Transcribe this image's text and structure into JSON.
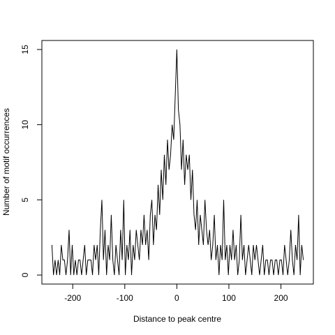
{
  "chart_data": {
    "type": "line",
    "x_label": "Distance to peak centre",
    "y_label": "Number of motif occurrences",
    "color": "#000000",
    "xlim": [
      -259.3,
      262.3
    ],
    "ylim": [
      -0.6,
      15.6
    ],
    "xticks": [
      -200,
      -100,
      0,
      100,
      200
    ],
    "yticks": [
      0,
      5,
      10,
      15
    ],
    "grid": false,
    "x": [
      -240,
      -237,
      -234,
      -231,
      -228,
      -225,
      -222,
      -219,
      -216,
      -213,
      -210,
      -207,
      -204,
      -201,
      -198,
      -195,
      -192,
      -189,
      -186,
      -183,
      -180,
      -177,
      -174,
      -171,
      -168,
      -165,
      -162,
      -159,
      -156,
      -153,
      -150,
      -147,
      -144,
      -141,
      -138,
      -135,
      -132,
      -129,
      -126,
      -123,
      -120,
      -117,
      -114,
      -111,
      -108,
      -105,
      -102,
      -99,
      -96,
      -93,
      -90,
      -87,
      -84,
      -81,
      -78,
      -75,
      -72,
      -69,
      -66,
      -63,
      -60,
      -57,
      -54,
      -51,
      -48,
      -45,
      -42,
      -39,
      -36,
      -33,
      -30,
      -27,
      -24,
      -21,
      -18,
      -15,
      -12,
      -9,
      -6,
      -3,
      0,
      3,
      6,
      9,
      12,
      15,
      18,
      21,
      24,
      27,
      30,
      33,
      36,
      39,
      42,
      45,
      48,
      51,
      54,
      57,
      60,
      63,
      66,
      69,
      72,
      75,
      78,
      81,
      84,
      87,
      90,
      93,
      96,
      99,
      102,
      105,
      108,
      111,
      114,
      117,
      120,
      123,
      126,
      129,
      132,
      135,
      138,
      141,
      144,
      147,
      150,
      153,
      156,
      159,
      162,
      165,
      168,
      171,
      174,
      177,
      180,
      183,
      186,
      189,
      192,
      195,
      198,
      201,
      204,
      207,
      210,
      213,
      216,
      219,
      222,
      225,
      228,
      231,
      234,
      237,
      240,
      243
    ],
    "values": [
      2,
      0,
      1,
      0,
      1,
      0,
      2,
      1,
      1,
      0,
      1,
      3,
      0,
      2,
      0,
      1,
      0,
      1,
      1,
      0,
      1,
      2,
      0,
      1,
      1,
      1,
      0,
      2,
      1,
      2,
      0,
      3,
      5,
      1,
      3,
      0,
      2,
      1,
      4,
      1,
      0,
      2,
      1,
      0,
      3,
      1,
      5,
      0,
      2,
      1,
      3,
      0,
      2,
      1,
      3,
      2,
      1,
      3,
      2,
      4,
      2,
      3,
      1,
      4,
      5,
      2,
      4,
      3,
      6,
      4,
      7,
      5,
      8,
      6,
      9,
      7,
      8,
      10,
      9,
      12,
      15,
      11,
      10,
      7,
      9,
      6,
      8,
      7,
      8,
      5,
      7,
      4,
      3,
      5,
      2,
      4,
      3,
      2,
      5,
      3,
      2,
      3,
      1,
      2,
      4,
      1,
      2,
      0,
      2,
      1,
      5,
      1,
      2,
      0,
      2,
      1,
      3,
      1,
      2,
      0,
      1,
      4,
      1,
      2,
      0,
      1,
      2,
      1,
      0,
      2,
      1,
      2,
      1,
      0,
      1,
      2,
      0,
      1,
      1,
      0,
      1,
      1,
      0,
      1,
      1,
      0,
      1,
      1,
      0,
      2,
      1,
      0,
      1,
      3,
      1,
      0,
      2,
      1,
      4,
      0,
      2,
      1
    ]
  }
}
